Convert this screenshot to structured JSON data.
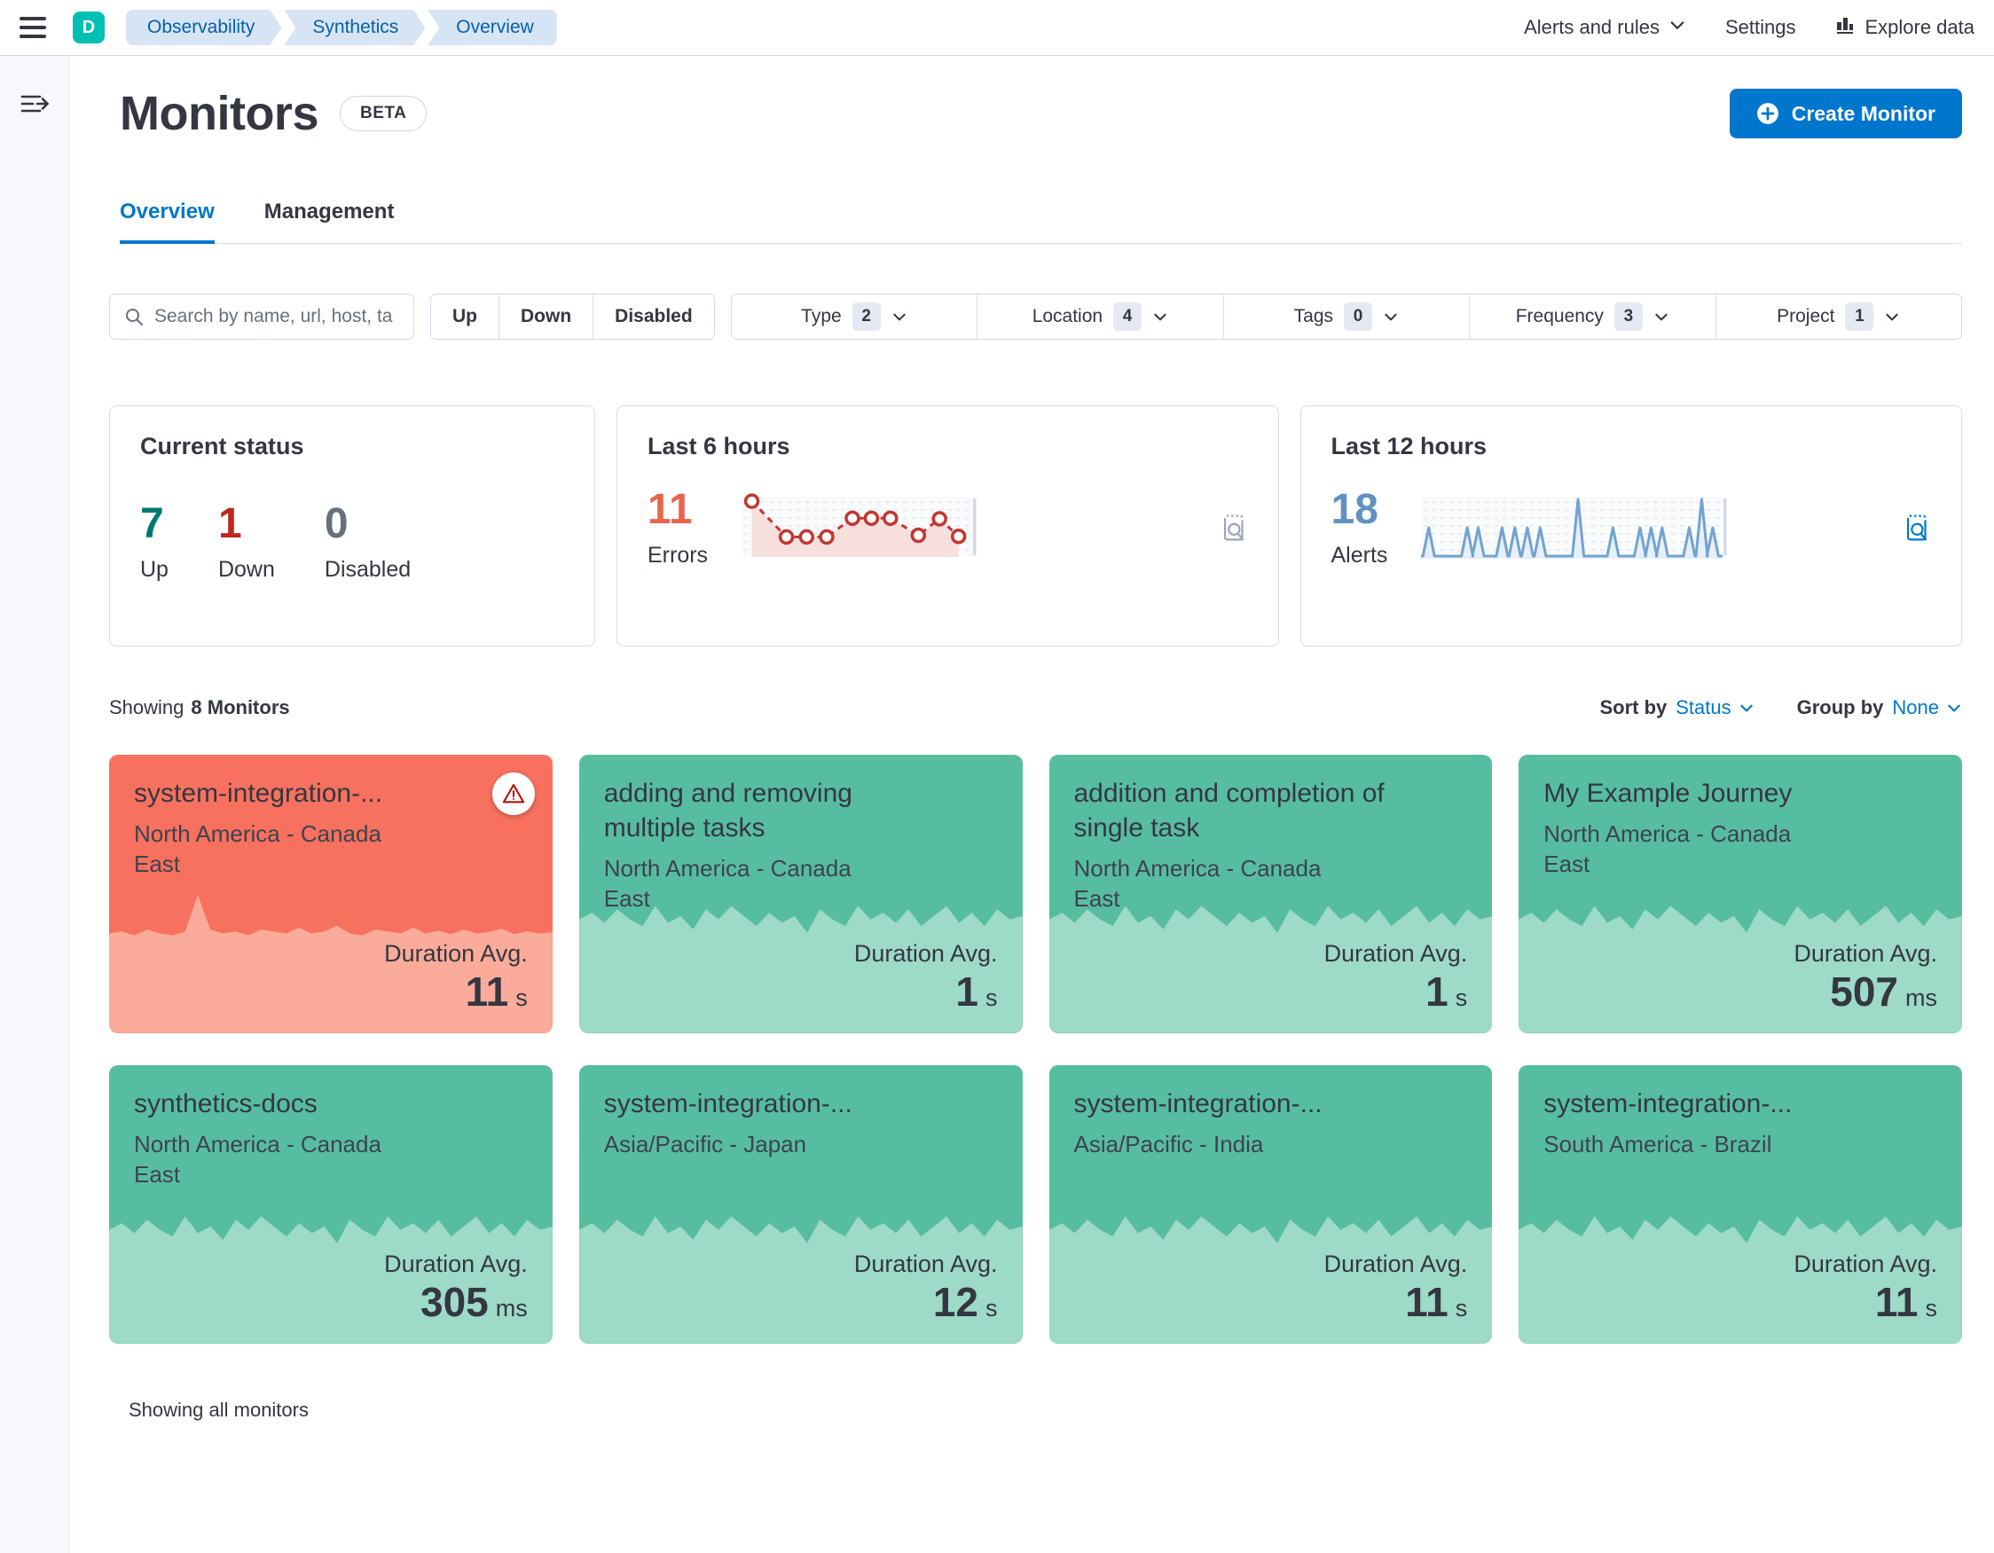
{
  "topbar": {
    "avatar_initial": "D",
    "breadcrumbs": [
      "Observability",
      "Synthetics",
      "Overview"
    ],
    "alerts_menu": "Alerts and rules",
    "settings": "Settings",
    "explore_data": "Explore data"
  },
  "page": {
    "title": "Monitors",
    "beta_badge": "BETA",
    "create_button": "Create Monitor"
  },
  "tabs": [
    {
      "label": "Overview"
    },
    {
      "label": "Management"
    }
  ],
  "toolbar": {
    "search_placeholder": "Search by name, url, host, ta",
    "status_buttons": [
      "Up",
      "Down",
      "Disabled"
    ],
    "filters": [
      {
        "label": "Type",
        "count": "2"
      },
      {
        "label": "Location",
        "count": "4"
      },
      {
        "label": "Tags",
        "count": "0"
      },
      {
        "label": "Frequency",
        "count": "3"
      },
      {
        "label": "Project",
        "count": "1"
      }
    ]
  },
  "stats": {
    "current_status": {
      "title": "Current status",
      "up": {
        "value": "7",
        "label": "Up"
      },
      "down": {
        "value": "1",
        "label": "Down"
      },
      "disabled": {
        "value": "0",
        "label": "Disabled"
      }
    },
    "last6": {
      "title": "Last 6 hours",
      "value": "11",
      "label": "Errors"
    },
    "last12": {
      "title": "Last 12 hours",
      "value": "18",
      "label": "Alerts"
    }
  },
  "list_header": {
    "showing_prefix": "Showing",
    "showing_count": "8 Monitors",
    "sort_label": "Sort by",
    "sort_value": "Status",
    "group_label": "Group by",
    "group_value": "None"
  },
  "duration_label": "Duration Avg.",
  "monitors": [
    {
      "name": "system-integration-...",
      "location": "North America - Canada East",
      "duration": "11",
      "unit": "s",
      "status": "down"
    },
    {
      "name": "adding and removing multiple tasks",
      "location": "North America - Canada East",
      "duration": "1",
      "unit": "s",
      "status": "up"
    },
    {
      "name": "addition and completion of single task",
      "location": "North America - Canada East",
      "duration": "1",
      "unit": "s",
      "status": "up"
    },
    {
      "name": "My Example Journey",
      "location": "North America - Canada East",
      "duration": "507",
      "unit": "ms",
      "status": "up"
    },
    {
      "name": "synthetics-docs",
      "location": "North America - Canada East",
      "duration": "305",
      "unit": "ms",
      "status": "up"
    },
    {
      "name": "system-integration-...",
      "location": "Asia/Pacific - Japan",
      "duration": "12",
      "unit": "s",
      "status": "up"
    },
    {
      "name": "system-integration-...",
      "location": "Asia/Pacific - India",
      "duration": "11",
      "unit": "s",
      "status": "up"
    },
    {
      "name": "system-integration-...",
      "location": "South America - Brazil",
      "duration": "11",
      "unit": "s",
      "status": "up"
    }
  ],
  "footer_text": "Showing all monitors",
  "colors": {
    "primary": "#0077cc",
    "up_green": "#007871",
    "down_red": "#bd271e",
    "disabled_gray": "#69707d",
    "errors_accent": "#e7664c",
    "alerts_accent": "#6092c0",
    "errors_line": "#c23731",
    "errors_fill": "#f7dfdd",
    "alerts_line": "#71a3d0",
    "alerts_fill": "#e7eff8",
    "card_up_bg": "#57bda0",
    "card_up_area": "#9ddac7",
    "card_down_bg": "#f8705e",
    "card_down_area": "#fbab99"
  },
  "chart_data": [
    {
      "type": "line",
      "name": "last-6-hours-errors-sparkline",
      "title": "Last 6 hours",
      "series_label": "Errors",
      "total_value": 11,
      "style": "red dashed line, open circle markers, light red area fill, dashed horizontal gridlines",
      "x_normalized": [
        0.03,
        0.185,
        0.275,
        0.365,
        0.48,
        0.565,
        0.65,
        0.775,
        0.87,
        0.955
      ],
      "y_normalized": [
        0.95,
        0.3,
        0.3,
        0.3,
        0.64,
        0.64,
        0.64,
        0.33,
        0.63,
        0.31
      ]
    },
    {
      "type": "area",
      "name": "last-12-hours-alerts-sparkline",
      "title": "Last 12 hours",
      "series_label": "Alerts",
      "total_value": 18,
      "style": "blue spike train on flat baseline, light blue fill, dashed horizontal gridlines",
      "spike_x_normalized": [
        0.02,
        0.149,
        0.186,
        0.266,
        0.309,
        0.351,
        0.394,
        0.521,
        0.638,
        0.729,
        0.766,
        0.803,
        0.894,
        0.936,
        0.973
      ],
      "spike_heights": [
        0.5,
        0.5,
        0.5,
        0.5,
        0.5,
        0.5,
        0.5,
        1,
        0.5,
        0.5,
        0.5,
        0.5,
        0.5,
        1,
        0.5
      ]
    },
    {
      "type": "area",
      "name": "monitor-card-duration-area-up",
      "style": "jagged light-green area across card bottom",
      "profile": [
        6,
        4,
        7,
        3,
        6,
        8,
        2,
        7,
        5,
        9,
        3,
        6,
        2,
        5,
        8,
        4,
        7,
        5,
        10,
        3,
        6,
        8,
        2,
        6,
        4,
        7,
        3,
        8,
        5,
        2,
        7,
        4,
        8,
        3,
        6,
        5
      ]
    },
    {
      "type": "area",
      "name": "monitor-card-duration-area-down",
      "style": "jagged light-salmon area with single tall spike",
      "profile": [
        14,
        13.5,
        14.5,
        13,
        14,
        14.5,
        13.5,
        4,
        13,
        14,
        13.5,
        14.5,
        13,
        13.5,
        14,
        12.5,
        14,
        13.5,
        12,
        14,
        14.5,
        13,
        13.5,
        14,
        12.5,
        14,
        13.3,
        14.2,
        13,
        14,
        13.6,
        12.8,
        14.2,
        13.4,
        14,
        13.7
      ]
    }
  ]
}
